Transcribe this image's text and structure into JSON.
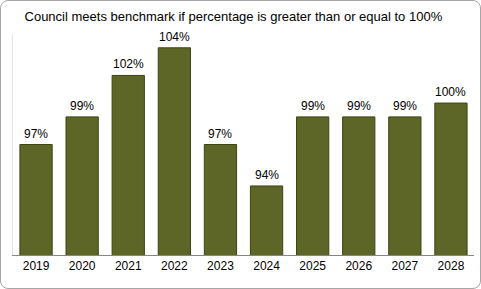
{
  "chart_data": {
    "type": "bar",
    "title": "Council meets benchmark if percentage is greater than or equal to 100%",
    "categories": [
      "2019",
      "2020",
      "2021",
      "2022",
      "2023",
      "2024",
      "2025",
      "2026",
      "2027",
      "2028"
    ],
    "values": [
      97,
      99,
      102,
      104,
      97,
      94,
      99,
      99,
      99,
      100
    ],
    "value_labels": [
      "97%",
      "99%",
      "102%",
      "104%",
      "97%",
      "94%",
      "99%",
      "99%",
      "99%",
      "100%"
    ],
    "color": "#5d6626",
    "ylim": [
      89,
      105
    ],
    "grid": false,
    "data_labels": true,
    "tick_labels": "x"
  }
}
